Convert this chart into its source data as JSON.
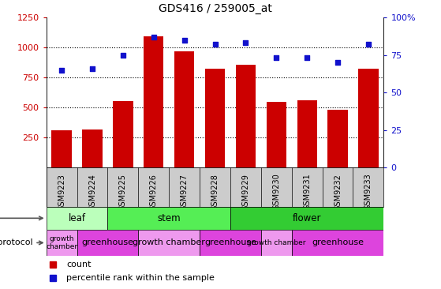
{
  "title": "GDS416 / 259005_at",
  "samples": [
    "GSM9223",
    "GSM9224",
    "GSM9225",
    "GSM9226",
    "GSM9227",
    "GSM9228",
    "GSM9229",
    "GSM9230",
    "GSM9231",
    "GSM9232",
    "GSM9233"
  ],
  "counts": [
    310,
    320,
    555,
    1095,
    970,
    820,
    855,
    545,
    560,
    480,
    820
  ],
  "percentiles": [
    65,
    66,
    75,
    87,
    85,
    82,
    83,
    73,
    73,
    70,
    82
  ],
  "bar_color": "#cc0000",
  "dot_color": "#1111cc",
  "left_yaxis": {
    "min": 0,
    "max": 1250,
    "ticks": [
      250,
      500,
      750,
      1000,
      1250
    ],
    "color": "#cc0000"
  },
  "right_yaxis": {
    "min": 0,
    "max": 100,
    "ticks": [
      0,
      25,
      50,
      75,
      100
    ],
    "labels": [
      "0",
      "25",
      "50",
      "75",
      "100%"
    ],
    "color": "#1111cc"
  },
  "dotted_lines": [
    250,
    500,
    750,
    1000
  ],
  "tissue_rows": [
    {
      "label": "leaf",
      "start": 0,
      "end": 2,
      "color": "#bbffbb"
    },
    {
      "label": "stem",
      "start": 2,
      "end": 6,
      "color": "#55ee55"
    },
    {
      "label": "flower",
      "start": 6,
      "end": 11,
      "color": "#33cc33"
    }
  ],
  "growth_protocol": [
    {
      "label": "growth\nchamber",
      "start": 0,
      "end": 1,
      "color": "#ee99ee"
    },
    {
      "label": "greenhouse",
      "start": 1,
      "end": 3,
      "color": "#dd44dd"
    },
    {
      "label": "growth chamber",
      "start": 3,
      "end": 5,
      "color": "#ee99ee"
    },
    {
      "label": "greenhouse",
      "start": 5,
      "end": 7,
      "color": "#dd44dd"
    },
    {
      "label": "growth chamber",
      "start": 7,
      "end": 8,
      "color": "#ee99ee"
    },
    {
      "label": "greenhouse",
      "start": 8,
      "end": 11,
      "color": "#dd44dd"
    }
  ],
  "xticklabel_bg": "#cccccc",
  "legend_count_color": "#cc0000",
  "legend_dot_color": "#1111cc",
  "fig_width": 5.59,
  "fig_height": 3.66,
  "dpi": 100
}
